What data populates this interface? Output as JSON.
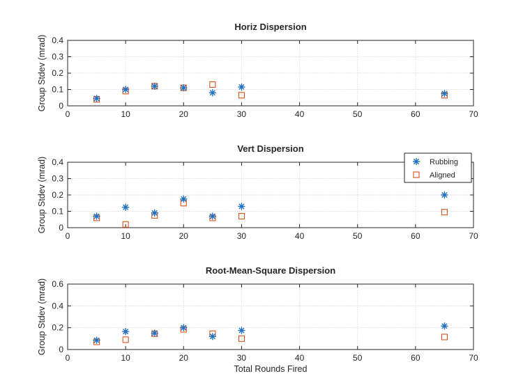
{
  "chart_data": [
    {
      "type": "scatter",
      "title": "Horiz Dispersion",
      "xlabel": "",
      "ylabel": "Group Stdev (mrad)",
      "xlim": [
        0,
        70
      ],
      "ylim": [
        0,
        0.4
      ],
      "xticks": [
        "0",
        "10",
        "20",
        "30",
        "40",
        "50",
        "60",
        "70"
      ],
      "yticks": [
        "0",
        "0.1",
        "0.2",
        "0.3",
        "0.4"
      ],
      "grid": true,
      "series": [
        {
          "name": "Rubbing",
          "marker": "asterisk",
          "color": "#1f6fc0",
          "x": [
            5,
            10,
            15,
            20,
            25,
            30,
            65
          ],
          "y": [
            0.045,
            0.1,
            0.12,
            0.11,
            0.08,
            0.115,
            0.075
          ]
        },
        {
          "name": "Aligned",
          "marker": "square",
          "color": "#d95319",
          "x": [
            5,
            10,
            15,
            20,
            25,
            30,
            65
          ],
          "y": [
            0.04,
            0.09,
            0.12,
            0.11,
            0.13,
            0.065,
            0.065
          ]
        }
      ]
    },
    {
      "type": "scatter",
      "title": "Vert Dispersion",
      "xlabel": "",
      "ylabel": "Group Stdev (mrad)",
      "xlim": [
        0,
        70
      ],
      "ylim": [
        0,
        0.4
      ],
      "xticks": [
        "0",
        "10",
        "20",
        "30",
        "40",
        "50",
        "60",
        "70"
      ],
      "yticks": [
        "0",
        "0.1",
        "0.2",
        "0.3",
        "0.4"
      ],
      "grid": true,
      "legend": {
        "position": "top-right",
        "entries": [
          "Rubbing",
          "Aligned"
        ]
      },
      "series": [
        {
          "name": "Rubbing",
          "marker": "asterisk",
          "color": "#1f6fc0",
          "x": [
            5,
            10,
            15,
            20,
            25,
            30,
            65
          ],
          "y": [
            0.07,
            0.125,
            0.09,
            0.175,
            0.07,
            0.13,
            0.2
          ]
        },
        {
          "name": "Aligned",
          "marker": "square",
          "color": "#d95319",
          "x": [
            5,
            10,
            15,
            20,
            25,
            30,
            65
          ],
          "y": [
            0.06,
            0.02,
            0.075,
            0.15,
            0.06,
            0.07,
            0.095
          ]
        }
      ]
    },
    {
      "type": "scatter",
      "title": "Root-Mean-Square Dispersion",
      "xlabel": "Total Rounds Fired",
      "ylabel": "Group Stdev (mrad)",
      "xlim": [
        0,
        70
      ],
      "ylim": [
        0,
        0.6
      ],
      "xticks": [
        "0",
        "10",
        "20",
        "30",
        "40",
        "50",
        "60",
        "70"
      ],
      "yticks": [
        "0",
        "0.2",
        "0.4",
        "0.6"
      ],
      "grid": true,
      "series": [
        {
          "name": "Rubbing",
          "marker": "asterisk",
          "color": "#1f6fc0",
          "x": [
            5,
            10,
            15,
            20,
            25,
            30,
            65
          ],
          "y": [
            0.085,
            0.165,
            0.15,
            0.2,
            0.12,
            0.175,
            0.215
          ]
        },
        {
          "name": "Aligned",
          "marker": "square",
          "color": "#d95319",
          "x": [
            5,
            10,
            15,
            20,
            25,
            30,
            65
          ],
          "y": [
            0.07,
            0.09,
            0.145,
            0.185,
            0.145,
            0.1,
            0.115
          ]
        }
      ]
    }
  ]
}
